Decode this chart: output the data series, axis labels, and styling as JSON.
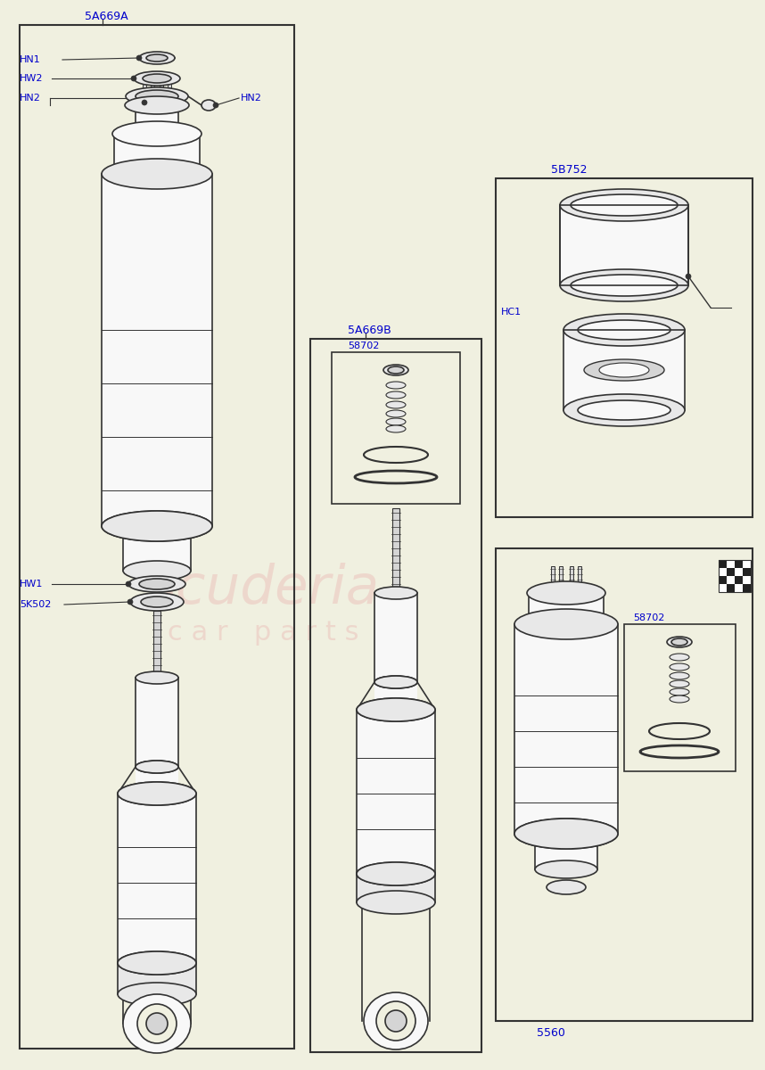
{
  "bg_color": "#f0f0e0",
  "line_color": "#333333",
  "label_color": "#0000cc",
  "box1_label": "5A669A",
  "box2_label": "5A669B",
  "box3_label": "5B752",
  "box4_label": "5560",
  "seal_label": "58702",
  "hc1_label": "HC1",
  "hn1_label": "HN1",
  "hw2_label": "HW2",
  "hn2_label": "HN2",
  "hw1_label": "HW1",
  "k502_label": "5K502"
}
